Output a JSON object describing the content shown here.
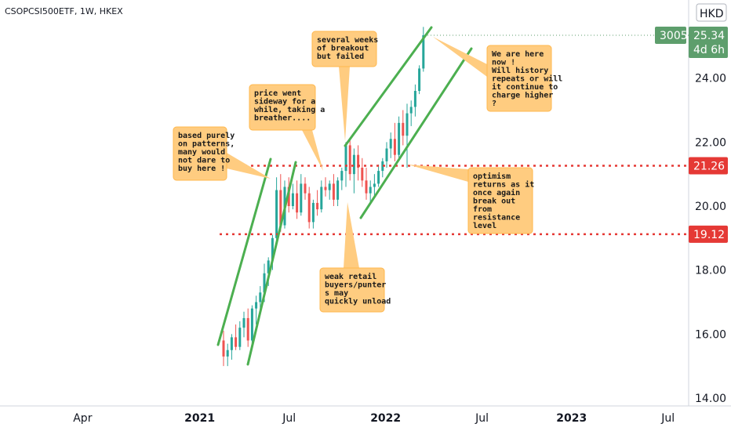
{
  "header": {
    "symbol": "CSOPCSI500ETF, 1W, HKEX",
    "currency": "HKD"
  },
  "colors": {
    "up": "#26a69a",
    "down": "#ef5350",
    "channel": "#4caf50",
    "level": "#e53935",
    "callout": "#ffcc80",
    "callout_border": "#ffb74d",
    "current_tag": "#5d9e6c",
    "volume_tag": "#5d9e6c"
  },
  "chart_data": {
    "type": "candlestick",
    "ylim": [
      14,
      26
    ],
    "y_ticks": [
      {
        "value": 24,
        "label": "24.00"
      },
      {
        "value": 22,
        "label": "22.00"
      },
      {
        "value": 20,
        "label": "20.00"
      },
      {
        "value": 18,
        "label": "18.00"
      },
      {
        "value": 16,
        "label": "16.00"
      },
      {
        "value": 14,
        "label": "14.00"
      }
    ],
    "x_ticks": [
      {
        "t": 0.12,
        "label": "Apr",
        "bold": false
      },
      {
        "t": 0.29,
        "label": "2021",
        "bold": true
      },
      {
        "t": 0.42,
        "label": "Jul",
        "bold": false
      },
      {
        "t": 0.56,
        "label": "2022",
        "bold": true
      },
      {
        "t": 0.7,
        "label": "Jul",
        "bold": false
      },
      {
        "t": 0.83,
        "label": "2023",
        "bold": true
      },
      {
        "t": 0.97,
        "label": "Jul",
        "bold": false
      }
    ],
    "price_levels": [
      {
        "value": 21.26,
        "label": "21.26"
      },
      {
        "value": 19.12,
        "label": "19.12"
      }
    ],
    "current_price": {
      "value": 25.34,
      "label": "25.34",
      "countdown": "4d 6h",
      "volume_label": "3005"
    },
    "candles": [
      [
        15.8,
        16.1,
        15.0,
        15.3
      ],
      [
        15.3,
        15.7,
        15.0,
        15.5
      ],
      [
        15.5,
        16.0,
        15.2,
        15.9
      ],
      [
        15.9,
        16.3,
        15.5,
        15.6
      ],
      [
        15.6,
        16.4,
        15.5,
        16.2
      ],
      [
        16.2,
        16.7,
        15.9,
        16.5
      ],
      [
        16.5,
        16.8,
        15.6,
        15.8
      ],
      [
        15.8,
        16.9,
        15.7,
        16.8
      ],
      [
        16.8,
        17.2,
        16.3,
        17.0
      ],
      [
        17.0,
        17.5,
        16.7,
        17.3
      ],
      [
        17.3,
        18.2,
        17.0,
        17.9
      ],
      [
        17.9,
        18.4,
        17.5,
        18.3
      ],
      [
        18.3,
        19.1,
        18.0,
        19.0
      ],
      [
        19.0,
        20.9,
        18.8,
        20.5
      ],
      [
        20.5,
        21.0,
        19.2,
        19.4
      ],
      [
        19.4,
        20.8,
        19.3,
        20.6
      ],
      [
        20.6,
        20.9,
        19.8,
        20.0
      ],
      [
        20.0,
        20.7,
        19.9,
        20.4
      ],
      [
        20.4,
        20.8,
        19.6,
        19.8
      ],
      [
        19.8,
        21.0,
        19.7,
        20.7
      ],
      [
        20.7,
        20.9,
        20.2,
        20.4
      ],
      [
        20.4,
        20.6,
        19.3,
        19.5
      ],
      [
        19.5,
        20.2,
        19.3,
        20.1
      ],
      [
        20.1,
        20.5,
        19.7,
        19.9
      ],
      [
        19.9,
        20.8,
        19.8,
        20.6
      ],
      [
        20.6,
        20.9,
        20.3,
        20.5
      ],
      [
        20.5,
        20.8,
        20.2,
        20.7
      ],
      [
        20.7,
        21.0,
        20.0,
        20.2
      ],
      [
        20.2,
        20.9,
        20.0,
        20.8
      ],
      [
        20.8,
        21.2,
        20.5,
        21.1
      ],
      [
        21.1,
        22.0,
        20.6,
        21.9
      ],
      [
        21.9,
        22.1,
        20.8,
        21.0
      ],
      [
        21.0,
        21.8,
        20.4,
        21.6
      ],
      [
        21.6,
        21.9,
        20.8,
        21.2
      ],
      [
        21.2,
        21.5,
        20.6,
        20.8
      ],
      [
        20.8,
        21.2,
        20.2,
        20.4
      ],
      [
        20.4,
        20.8,
        20.1,
        20.6
      ],
      [
        20.6,
        21.0,
        20.3,
        20.7
      ],
      [
        20.7,
        21.3,
        20.6,
        21.1
      ],
      [
        21.1,
        21.5,
        20.9,
        21.4
      ],
      [
        21.4,
        22.0,
        21.2,
        21.8
      ],
      [
        21.8,
        22.3,
        21.5,
        22.1
      ],
      [
        22.1,
        22.6,
        21.4,
        21.6
      ],
      [
        21.6,
        22.8,
        21.5,
        22.6
      ],
      [
        22.6,
        23.0,
        21.9,
        22.2
      ],
      [
        22.2,
        23.2,
        21.2,
        22.9
      ],
      [
        22.9,
        23.3,
        22.5,
        23.1
      ],
      [
        23.1,
        23.8,
        22.8,
        23.6
      ],
      [
        23.6,
        24.4,
        23.5,
        24.3
      ],
      [
        24.3,
        25.6,
        24.2,
        25.34
      ]
    ]
  },
  "annotations": [
    {
      "id": "patterns",
      "lines": [
        "based purely",
        "on patterns,",
        "many would",
        "not dare to",
        "buy here !"
      ]
    },
    {
      "id": "sideway",
      "lines": [
        "price went",
        "sideway for a",
        "while, taking a",
        "breather...."
      ]
    },
    {
      "id": "breakout-failed",
      "lines": [
        "several weeks",
        "of breakout",
        "but failed"
      ]
    },
    {
      "id": "we-are-here",
      "lines": [
        "We are here",
        "now !",
        "Will history",
        "repeats or will",
        "it continue to",
        "charge higher",
        "?"
      ]
    },
    {
      "id": "optimism",
      "lines": [
        "optimism",
        "returns as it",
        "once again",
        "break out",
        "from",
        "resistance",
        "level"
      ]
    },
    {
      "id": "weak-retail",
      "lines": [
        "weak retail",
        "buyers/punter",
        "s may",
        "quickly unload"
      ]
    }
  ]
}
